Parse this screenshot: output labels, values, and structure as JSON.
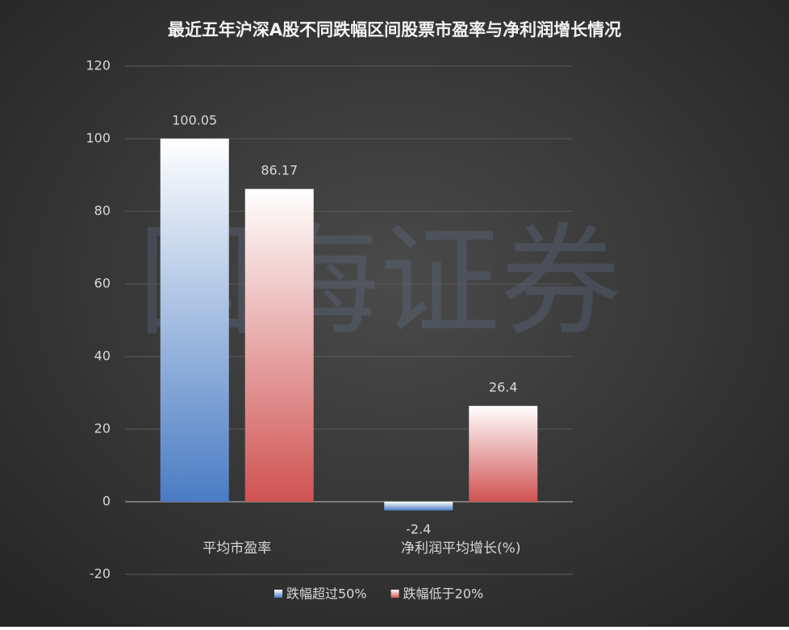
{
  "chart_data": {
    "type": "bar",
    "title": "最近五年沪深A股不同跌幅区间股票市盈率与净利润增长情况",
    "watermark": "国海证券",
    "categories": [
      "平均市盈率",
      "净利润平均增长(%)"
    ],
    "series": [
      {
        "name": "跌幅超过50%",
        "color": "#4a7cc4",
        "values": [
          100.05,
          -2.4
        ]
      },
      {
        "name": "跌幅低于20%",
        "color": "#d05252",
        "values": [
          86.17,
          26.4
        ]
      }
    ],
    "ylim": [
      -20,
      120
    ],
    "yticks": [
      -20,
      0,
      20,
      40,
      60,
      80,
      100,
      120
    ],
    "grid": true,
    "legend": "bottom"
  }
}
